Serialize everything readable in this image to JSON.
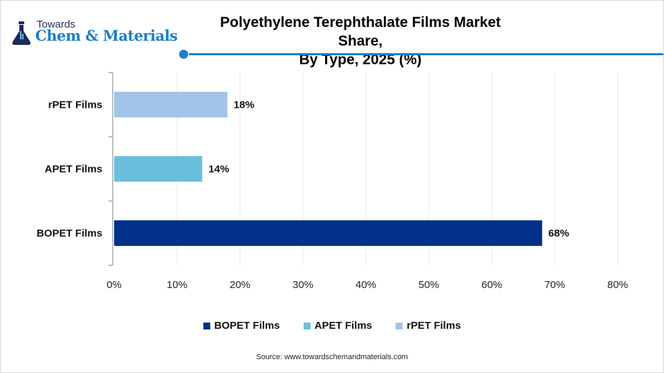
{
  "logo": {
    "towards": "Towards",
    "name": "Chem & Materials"
  },
  "source": "Source: www.towardschemandmaterials.com",
  "colors": {
    "accent": "#1a7fc8",
    "bopet": "#003087",
    "apet": "#6bbfdc",
    "rpet": "#a3c4e8"
  },
  "chart_data": {
    "type": "bar",
    "orientation": "horizontal",
    "title": "Polyethylene Terephthalate Films Market Share, By Type, 2025 (%)",
    "title_lines": [
      "Polyethylene Terephthalate Films Market Share,",
      "By Type, 2025 (%)"
    ],
    "categories": [
      "rPET Films",
      "APET Films",
      "BOPET Films"
    ],
    "values": [
      18,
      14,
      68
    ],
    "data_labels": [
      "18%",
      "14%",
      "68%"
    ],
    "bar_colors": [
      "#a3c4e8",
      "#6bbfdc",
      "#003087"
    ],
    "xlim": [
      0,
      80
    ],
    "xticks": [
      "0%",
      "10%",
      "20%",
      "30%",
      "40%",
      "50%",
      "60%",
      "70%",
      "80%"
    ],
    "grid": true,
    "legend_position": "bottom",
    "legend": [
      {
        "name": "BOPET Films",
        "color": "#003087"
      },
      {
        "name": "APET Films",
        "color": "#6bbfdc"
      },
      {
        "name": "rPET Films",
        "color": "#a3c4e8"
      }
    ]
  }
}
